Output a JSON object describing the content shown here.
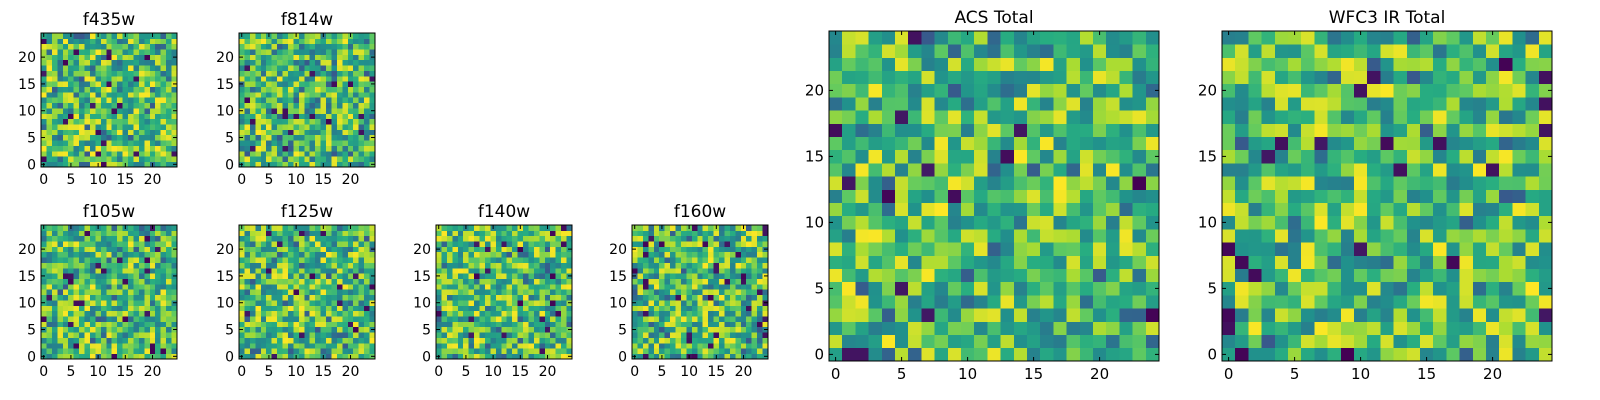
{
  "chart_data": [
    {
      "type": "heatmap",
      "title": "f435w",
      "x_ticks": [
        "0",
        "5",
        "10",
        "15",
        "20"
      ],
      "y_ticks": [
        "0",
        "5",
        "10",
        "15",
        "20"
      ],
      "grid_size": 25,
      "xlim": [
        0,
        25
      ],
      "ylim": [
        0,
        25
      ],
      "colormap": "viridis",
      "seed": 11,
      "grid": false
    },
    {
      "type": "heatmap",
      "title": "f814w",
      "x_ticks": [
        "0",
        "5",
        "10",
        "15",
        "20"
      ],
      "y_ticks": [
        "0",
        "5",
        "10",
        "15",
        "20"
      ],
      "grid_size": 25,
      "xlim": [
        0,
        25
      ],
      "ylim": [
        0,
        25
      ],
      "colormap": "viridis",
      "seed": 23,
      "grid": false
    },
    {
      "type": "heatmap",
      "title": "f105w",
      "x_ticks": [
        "0",
        "5",
        "10",
        "15",
        "20"
      ],
      "y_ticks": [
        "0",
        "5",
        "10",
        "15",
        "20"
      ],
      "grid_size": 25,
      "xlim": [
        0,
        25
      ],
      "ylim": [
        0,
        25
      ],
      "colormap": "viridis",
      "seed": 37,
      "grid": false
    },
    {
      "type": "heatmap",
      "title": "f125w",
      "x_ticks": [
        "0",
        "5",
        "10",
        "15",
        "20"
      ],
      "y_ticks": [
        "0",
        "5",
        "10",
        "15",
        "20"
      ],
      "grid_size": 25,
      "xlim": [
        0,
        25
      ],
      "ylim": [
        0,
        25
      ],
      "colormap": "viridis",
      "seed": 41,
      "grid": false
    },
    {
      "type": "heatmap",
      "title": "f140w",
      "x_ticks": [
        "0",
        "5",
        "10",
        "15",
        "20"
      ],
      "y_ticks": [
        "0",
        "5",
        "10",
        "15",
        "20"
      ],
      "grid_size": 25,
      "xlim": [
        0,
        25
      ],
      "ylim": [
        0,
        25
      ],
      "colormap": "viridis",
      "seed": 53,
      "grid": false
    },
    {
      "type": "heatmap",
      "title": "f160w",
      "x_ticks": [
        "0",
        "5",
        "10",
        "15",
        "20"
      ],
      "y_ticks": [
        "0",
        "5",
        "10",
        "15",
        "20"
      ],
      "grid_size": 25,
      "xlim": [
        0,
        25
      ],
      "ylim": [
        0,
        25
      ],
      "colormap": "viridis",
      "seed": 67,
      "grid": false
    },
    {
      "type": "heatmap",
      "title": "ACS Total",
      "x_ticks": [
        "0",
        "5",
        "10",
        "15",
        "20"
      ],
      "y_ticks": [
        "0",
        "5",
        "10",
        "15",
        "20"
      ],
      "grid_size": 25,
      "xlim": [
        0,
        25
      ],
      "ylim": [
        0,
        25
      ],
      "colormap": "viridis",
      "seed": 79,
      "grid": false
    },
    {
      "type": "heatmap",
      "title": "WFC3 IR Total",
      "x_ticks": [
        "0",
        "5",
        "10",
        "15",
        "20"
      ],
      "y_ticks": [
        "0",
        "5",
        "10",
        "15",
        "20"
      ],
      "grid_size": 25,
      "xlim": [
        0,
        25
      ],
      "ylim": [
        0,
        25
      ],
      "colormap": "viridis",
      "seed": 97,
      "grid": false
    }
  ]
}
